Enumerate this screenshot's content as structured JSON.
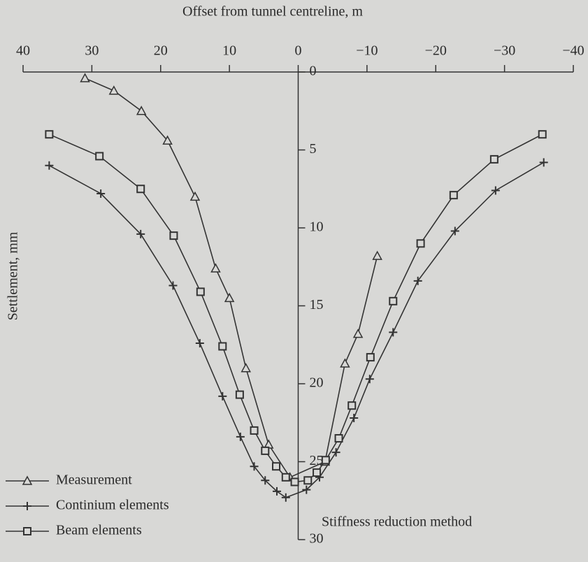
{
  "chart_data": {
    "type": "line",
    "title": "Offset from tunnel centreline, m",
    "ylabel": "Settlement, mm",
    "annotation": "Stiffness reduction method",
    "xlim": [
      40,
      -40
    ],
    "xticks": [
      40,
      30,
      20,
      10,
      0,
      {
        "value": -10,
        "label": "−10"
      },
      {
        "value": -20,
        "label": "−20"
      },
      {
        "value": -30,
        "label": "−30"
      },
      {
        "value": -40,
        "label": "−40"
      }
    ],
    "ylim": [
      0,
      30
    ],
    "yticks": [
      0,
      5,
      10,
      15,
      20,
      25,
      30
    ],
    "y_inverted": true,
    "legend": "lower left",
    "series": [
      {
        "name": "Measurement",
        "color": "#333333",
        "marker": "triangle",
        "x": [
          31.0,
          26.8,
          22.8,
          19.0,
          15.0,
          12.0,
          10.0,
          7.6,
          4.3,
          1.2,
          -3.9,
          -6.8,
          -8.7,
          -11.5
        ],
        "values": [
          0.4,
          1.2,
          2.5,
          4.4,
          8.0,
          12.6,
          14.5,
          19.0,
          23.9,
          26.0,
          25.0,
          18.7,
          16.8,
          11.8
        ]
      },
      {
        "name": "Continium elements",
        "color": "#333333",
        "marker": "plus",
        "x": [
          36.2,
          28.7,
          22.9,
          18.2,
          14.3,
          11.0,
          8.4,
          6.4,
          4.8,
          3.1,
          1.8,
          -1.2,
          -3.1,
          -5.5,
          -8.1,
          -10.4,
          -13.8,
          -17.4,
          -22.8,
          -28.7,
          -35.7
        ],
        "values": [
          6.0,
          7.8,
          10.4,
          13.7,
          17.4,
          20.8,
          23.4,
          25.3,
          26.2,
          26.9,
          27.3,
          26.8,
          26.0,
          24.4,
          22.2,
          19.7,
          16.7,
          13.4,
          10.2,
          7.6,
          5.8
        ]
      },
      {
        "name": "Beam elements",
        "color": "#333333",
        "marker": "square",
        "x": [
          36.2,
          28.9,
          22.9,
          18.1,
          14.2,
          11.0,
          8.5,
          6.4,
          4.8,
          3.2,
          1.8,
          0.5,
          -1.4,
          -2.7,
          -4.0,
          -5.9,
          -7.8,
          -10.5,
          -13.8,
          -17.8,
          -22.6,
          -28.5,
          -35.5
        ],
        "values": [
          4.0,
          5.4,
          7.5,
          10.5,
          14.1,
          17.6,
          20.7,
          23.0,
          24.3,
          25.3,
          26.0,
          26.3,
          26.2,
          25.7,
          24.9,
          23.5,
          21.4,
          18.3,
          14.7,
          11.0,
          7.9,
          5.6,
          4.0
        ]
      }
    ]
  }
}
